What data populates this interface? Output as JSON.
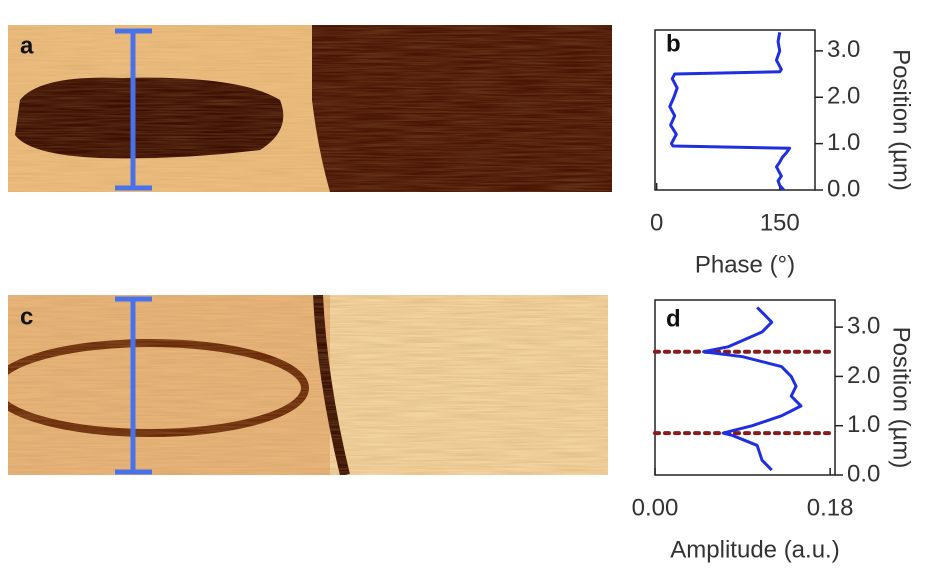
{
  "panel_labels": [
    "a",
    "b",
    "c",
    "d"
  ],
  "chart_data": [
    {
      "type": "line",
      "x_label": "Phase (°)",
      "y_label": "Position (µm)",
      "xlim": [
        -2,
        193
      ],
      "xticks": [
        0,
        150
      ],
      "ylim": [
        0,
        3.45
      ],
      "yticks": [
        {
          "value": 0,
          "label": "0.0"
        },
        {
          "value": 1,
          "label": "1.0"
        },
        {
          "value": 2,
          "label": "2.0"
        },
        {
          "value": 3,
          "label": "3.0"
        }
      ],
      "y": [
        0.0,
        0.1,
        0.2,
        0.3,
        0.4,
        0.5,
        0.6,
        0.7,
        0.8,
        0.9,
        0.95,
        1.0,
        1.2,
        1.4,
        1.6,
        1.8,
        2.0,
        2.2,
        2.4,
        2.5,
        2.55,
        2.6,
        2.8,
        3.0,
        3.2,
        3.4
      ],
      "series": [
        {
          "color": "#1f2fe0",
          "values": [
            155,
            150,
            148,
            152,
            149,
            146,
            150,
            153,
            158,
            162,
            20,
            18,
            24,
            17,
            22,
            16,
            21,
            25,
            19,
            22,
            150,
            152,
            146,
            150,
            148,
            150
          ]
        }
      ]
    },
    {
      "type": "line",
      "x_label": "Amplitude (a.u.)",
      "y_label": "Position (µm)",
      "xlim": [
        0,
        0.185
      ],
      "xticks": [
        {
          "value": 0,
          "label": "0.00"
        },
        {
          "value": 0.18,
          "label": "0.18"
        }
      ],
      "ylim": [
        0,
        3.55
      ],
      "yticks": [
        {
          "value": 0,
          "label": "0.0"
        },
        {
          "value": 1,
          "label": "1.0"
        },
        {
          "value": 2,
          "label": "2.0"
        },
        {
          "value": 3,
          "label": "3.0"
        }
      ],
      "y": [
        0.1,
        0.3,
        0.6,
        0.8,
        0.85,
        1.0,
        1.2,
        1.4,
        1.6,
        1.8,
        2.0,
        2.2,
        2.4,
        2.5,
        2.6,
        2.9,
        3.1,
        3.3,
        3.4
      ],
      "series": [
        {
          "color": "#1f2fe0",
          "values": [
            0.12,
            0.11,
            0.105,
            0.08,
            0.07,
            0.1,
            0.13,
            0.15,
            0.14,
            0.145,
            0.14,
            0.13,
            0.09,
            0.05,
            0.075,
            0.11,
            0.12,
            0.11,
            0.105
          ]
        }
      ],
      "reference_lines": {
        "color": "#8b1a1a",
        "values": [
          0.85,
          2.5
        ]
      }
    }
  ]
}
